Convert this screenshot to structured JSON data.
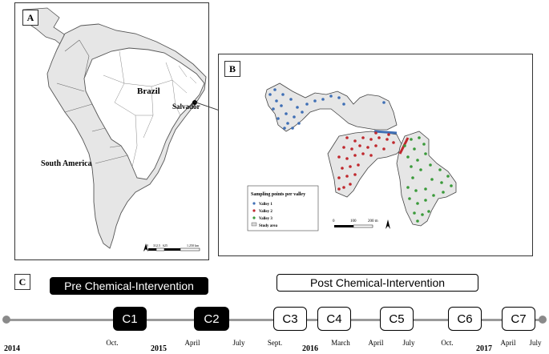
{
  "panel_a": {
    "tag": "A",
    "labels": {
      "continent": "South America",
      "country": "Brazil",
      "city": "Salvador"
    },
    "scale": {
      "ticks": [
        "0",
        "312.5",
        "625",
        "1.250 km"
      ]
    }
  },
  "panel_b": {
    "tag": "B",
    "legend": {
      "title": "Sampling  points per valley",
      "items": [
        {
          "label": "Valley 1",
          "color": "#3f6fb5"
        },
        {
          "label": "Valley 2",
          "color": "#c0282d"
        },
        {
          "label": "Valley 3",
          "color": "#3a9a3a"
        },
        {
          "label": "Study area",
          "color": "#d9d9d9"
        }
      ]
    },
    "scale": {
      "ticks": [
        "0",
        "100",
        "200 m"
      ]
    }
  },
  "panel_c": {
    "tag": "C",
    "phases": {
      "pre": "Pre Chemical-Intervention",
      "post": "Post Chemical-Intervention"
    },
    "campaigns": [
      "C1",
      "C2",
      "C3",
      "C4",
      "C5",
      "C6",
      "C7"
    ],
    "ticks": [
      "Oct.",
      "April",
      "July",
      "Sept.",
      "March",
      "April",
      "July",
      "Oct.",
      "April",
      "July"
    ],
    "years": [
      "2014",
      "2015",
      "2016",
      "2017"
    ]
  },
  "colors": {
    "valley1": "#3f6fb5",
    "valley2": "#c0282d",
    "valley3": "#3a9a3a",
    "land": "#e6e6e6",
    "brazil": "#ffffff"
  }
}
